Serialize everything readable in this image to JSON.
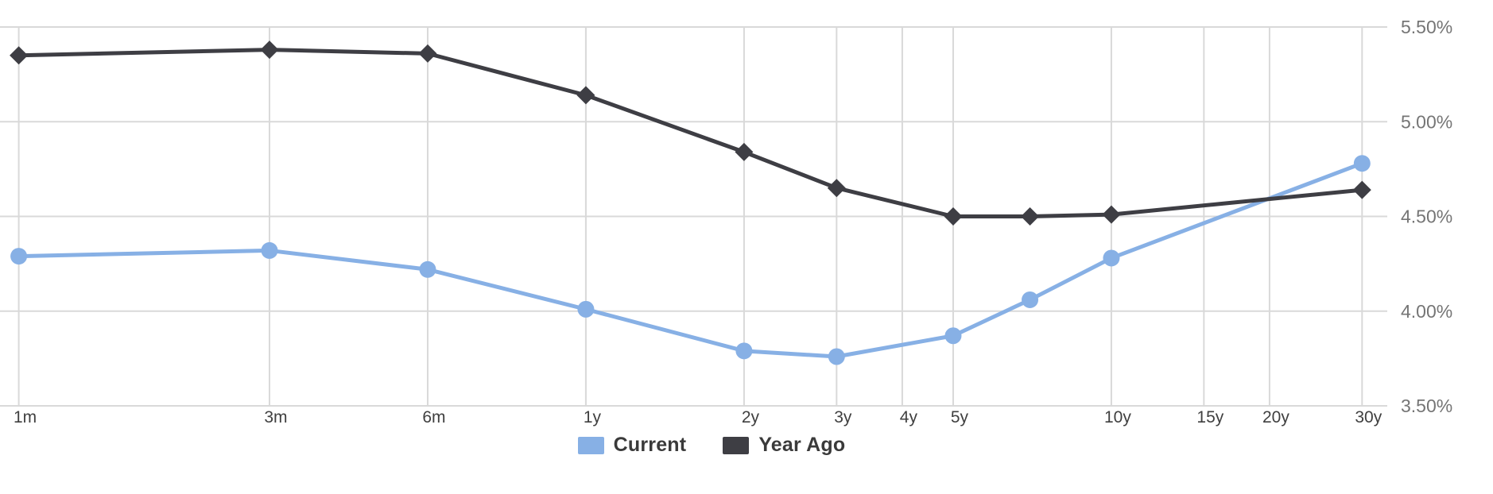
{
  "chart_data": {
    "type": "line",
    "x_axis": {
      "scale": "logarithmic-maturity",
      "ticks": [
        {
          "label": "1m",
          "months": 1
        },
        {
          "label": "3m",
          "months": 3
        },
        {
          "label": "6m",
          "months": 6
        },
        {
          "label": "1y",
          "months": 12
        },
        {
          "label": "2y",
          "months": 24
        },
        {
          "label": "3y",
          "months": 36
        },
        {
          "label": "4y",
          "months": 48
        },
        {
          "label": "5y",
          "months": 60
        },
        {
          "label": "10y",
          "months": 120
        },
        {
          "label": "15y",
          "months": 180
        },
        {
          "label": "20y",
          "months": 240
        },
        {
          "label": "30y",
          "months": 360
        }
      ]
    },
    "y_axis": {
      "side": "right",
      "min": 3.5,
      "max": 5.5,
      "ticks": [
        {
          "label": "5.50%",
          "value": 5.5
        },
        {
          "label": "5.00%",
          "value": 5.0
        },
        {
          "label": "4.50%",
          "value": 4.5
        },
        {
          "label": "4.00%",
          "value": 4.0
        },
        {
          "label": "3.50%",
          "value": 3.5
        }
      ]
    },
    "grid": true,
    "legend_position": "bottom",
    "series": [
      {
        "name": "Current",
        "color": "#87B0E5",
        "marker": "circle",
        "points": [
          {
            "maturity": "1m",
            "months": 1,
            "value": 4.29
          },
          {
            "maturity": "3m",
            "months": 3,
            "value": 4.32
          },
          {
            "maturity": "6m",
            "months": 6,
            "value": 4.22
          },
          {
            "maturity": "1y",
            "months": 12,
            "value": 4.01
          },
          {
            "maturity": "2y",
            "months": 24,
            "value": 3.79
          },
          {
            "maturity": "3y",
            "months": 36,
            "value": 3.76
          },
          {
            "maturity": "5y",
            "months": 60,
            "value": 3.87
          },
          {
            "maturity": "7y",
            "months": 84,
            "value": 4.06
          },
          {
            "maturity": "10y",
            "months": 120,
            "value": 4.28
          },
          {
            "maturity": "30y",
            "months": 360,
            "value": 4.78
          }
        ]
      },
      {
        "name": "Year Ago",
        "color": "#3E3E44",
        "marker": "diamond",
        "points": [
          {
            "maturity": "1m",
            "months": 1,
            "value": 5.35
          },
          {
            "maturity": "3m",
            "months": 3,
            "value": 5.38
          },
          {
            "maturity": "6m",
            "months": 6,
            "value": 5.36
          },
          {
            "maturity": "1y",
            "months": 12,
            "value": 5.14
          },
          {
            "maturity": "2y",
            "months": 24,
            "value": 4.84
          },
          {
            "maturity": "3y",
            "months": 36,
            "value": 4.65
          },
          {
            "maturity": "5y",
            "months": 60,
            "value": 4.5
          },
          {
            "maturity": "7y",
            "months": 84,
            "value": 4.5
          },
          {
            "maturity": "10y",
            "months": 120,
            "value": 4.51
          },
          {
            "maturity": "30y",
            "months": 360,
            "value": 4.64
          }
        ]
      }
    ]
  },
  "colors": {
    "background": "#FFFFFF",
    "gridline": "#D9D9D9",
    "x_tick_text": "#3F3F3F",
    "y_tick_text": "#757575",
    "legend_text": "#3A3A3A"
  }
}
